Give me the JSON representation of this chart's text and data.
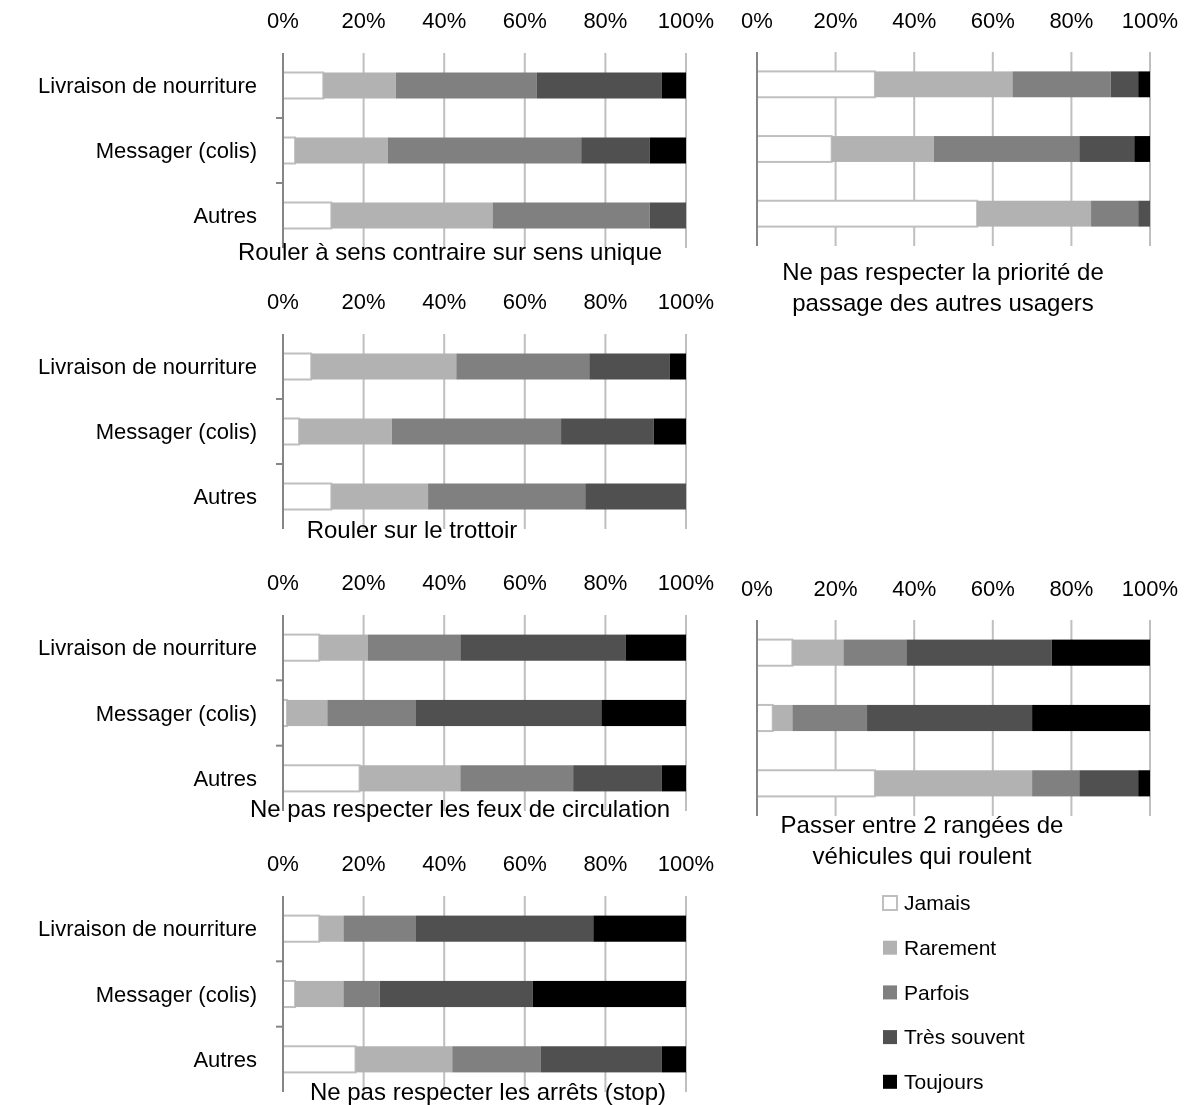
{
  "chart_data": [
    {
      "type": "bar",
      "orientation": "horizontal",
      "stacked": true,
      "title": "Rouler à sens contraire sur sens unique",
      "categories": [
        "Livraison de nourriture",
        "Messager (colis)",
        "Autres"
      ],
      "xlim": [
        0,
        100
      ],
      "xticks": [
        {
          "value": 0,
          "label": "0%"
        },
        {
          "value": 20,
          "label": "20%"
        },
        {
          "value": 40,
          "label": "40%"
        },
        {
          "value": 60,
          "label": "60%"
        },
        {
          "value": 80,
          "label": "80%"
        },
        {
          "value": 100,
          "label": "100%"
        }
      ],
      "grid": "x",
      "series": [
        {
          "color": "#ffffff",
          "values": [
            10,
            3,
            12
          ]
        },
        {
          "color": "#b2b2b2",
          "values": [
            18,
            23,
            40
          ]
        },
        {
          "color": "#808080",
          "values": [
            35,
            48,
            39
          ]
        },
        {
          "color": "#505050",
          "values": [
            31,
            17,
            9
          ]
        },
        {
          "color": "#000000",
          "values": [
            6,
            9,
            0
          ]
        }
      ]
    },
    {
      "type": "bar",
      "orientation": "horizontal",
      "stacked": true,
      "title": "Ne pas respecter la priorité de passage des autres usagers",
      "categories": [
        null,
        null,
        null
      ],
      "tick_labels": "x",
      "xlim": [
        0,
        100
      ],
      "xticks": [
        {
          "value": 0,
          "label": "0%"
        },
        {
          "value": 20,
          "label": "20%"
        },
        {
          "value": 40,
          "label": "40%"
        },
        {
          "value": 60,
          "label": "60%"
        },
        {
          "value": 80,
          "label": "80%"
        },
        {
          "value": 100,
          "label": "100%"
        }
      ],
      "grid": "x",
      "series": [
        {
          "color": "#ffffff",
          "values": [
            30,
            19,
            56
          ]
        },
        {
          "color": "#b2b2b2",
          "values": [
            35,
            26,
            29
          ]
        },
        {
          "color": "#808080",
          "values": [
            25,
            37,
            12
          ]
        },
        {
          "color": "#505050",
          "values": [
            7,
            14,
            3
          ]
        },
        {
          "color": "#000000",
          "values": [
            3,
            4,
            0
          ]
        }
      ]
    },
    {
      "type": "bar",
      "orientation": "horizontal",
      "stacked": true,
      "title": "Rouler sur le trottoir",
      "categories": [
        "Livraison de nourriture",
        "Messager (colis)",
        "Autres"
      ],
      "xlim": [
        0,
        100
      ],
      "xticks": [
        {
          "value": 0,
          "label": "0%"
        },
        {
          "value": 20,
          "label": "20%"
        },
        {
          "value": 40,
          "label": "40%"
        },
        {
          "value": 60,
          "label": "60%"
        },
        {
          "value": 80,
          "label": "80%"
        },
        {
          "value": 100,
          "label": "100%"
        }
      ],
      "grid": "x",
      "series": [
        {
          "color": "#ffffff",
          "values": [
            7,
            4,
            12
          ]
        },
        {
          "color": "#b2b2b2",
          "values": [
            36,
            23,
            24
          ]
        },
        {
          "color": "#808080",
          "values": [
            33,
            42,
            39
          ]
        },
        {
          "color": "#505050",
          "values": [
            20,
            23,
            25
          ]
        },
        {
          "color": "#000000",
          "values": [
            4,
            8,
            0
          ]
        }
      ]
    },
    {
      "type": "bar",
      "orientation": "horizontal",
      "stacked": true,
      "title": "Ne pas respecter les feux de circulation",
      "categories": [
        "Livraison de nourriture",
        "Messager (colis)",
        "Autres"
      ],
      "xlim": [
        0,
        100
      ],
      "xticks": [
        {
          "value": 0,
          "label": "0%"
        },
        {
          "value": 20,
          "label": "20%"
        },
        {
          "value": 40,
          "label": "40%"
        },
        {
          "value": 60,
          "label": "60%"
        },
        {
          "value": 80,
          "label": "80%"
        },
        {
          "value": 100,
          "label": "100%"
        }
      ],
      "grid": "x",
      "series": [
        {
          "color": "#ffffff",
          "values": [
            9,
            1,
            19
          ]
        },
        {
          "color": "#b2b2b2",
          "values": [
            12,
            10,
            25
          ]
        },
        {
          "color": "#808080",
          "values": [
            23,
            22,
            28
          ]
        },
        {
          "color": "#505050",
          "values": [
            41,
            46,
            22
          ]
        },
        {
          "color": "#000000",
          "values": [
            15,
            21,
            6
          ]
        }
      ]
    },
    {
      "type": "bar",
      "orientation": "horizontal",
      "stacked": true,
      "title": "Passer entre 2 rangées de véhicules qui roulent",
      "categories": [
        null,
        null,
        null
      ],
      "tick_labels": "x",
      "xlim": [
        0,
        100
      ],
      "xticks": [
        {
          "value": 0,
          "label": "0%"
        },
        {
          "value": 20,
          "label": "20%"
        },
        {
          "value": 40,
          "label": "40%"
        },
        {
          "value": 60,
          "label": "60%"
        },
        {
          "value": 80,
          "label": "80%"
        },
        {
          "value": 100,
          "label": "100%"
        }
      ],
      "grid": "x",
      "legend": "bottom",
      "series": [
        {
          "name": "Jamais",
          "color": "#ffffff",
          "values": [
            9,
            4,
            30
          ]
        },
        {
          "name": "Rarement",
          "color": "#b2b2b2",
          "values": [
            13,
            5,
            40
          ]
        },
        {
          "name": "Parfois",
          "color": "#808080",
          "values": [
            16,
            19,
            12
          ]
        },
        {
          "name": "Très souvent",
          "color": "#505050",
          "values": [
            37,
            42,
            15
          ]
        },
        {
          "name": "Toujours",
          "color": "#000000",
          "values": [
            25,
            30,
            3
          ]
        }
      ]
    },
    {
      "type": "bar",
      "orientation": "horizontal",
      "stacked": true,
      "title": "Ne pas respecter les arrêts (stop)",
      "categories": [
        "Livraison de nourriture",
        "Messager (colis)",
        "Autres"
      ],
      "xlim": [
        0,
        100
      ],
      "xticks": [
        {
          "value": 0,
          "label": "0%"
        },
        {
          "value": 20,
          "label": "20%"
        },
        {
          "value": 40,
          "label": "40%"
        },
        {
          "value": 60,
          "label": "60%"
        },
        {
          "value": 80,
          "label": "80%"
        },
        {
          "value": 100,
          "label": "100%"
        }
      ],
      "grid": "x",
      "series": [
        {
          "color": "#ffffff",
          "values": [
            9,
            3,
            18
          ]
        },
        {
          "color": "#b2b2b2",
          "values": [
            6,
            12,
            24
          ]
        },
        {
          "color": "#808080",
          "values": [
            18,
            9,
            22
          ]
        },
        {
          "color": "#505050",
          "values": [
            44,
            38,
            30
          ]
        },
        {
          "color": "#000000",
          "values": [
            23,
            38,
            6
          ]
        }
      ]
    }
  ]
}
